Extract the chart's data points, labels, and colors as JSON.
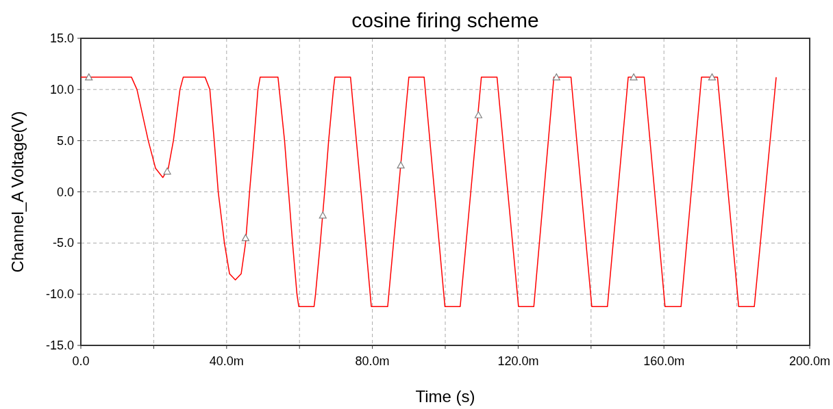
{
  "chart_data": {
    "type": "line",
    "title": "cosine firing scheme",
    "xlabel": "Time (s)",
    "ylabel": "Channel_A Voltage(V)",
    "xlim": [
      0,
      200
    ],
    "ylim": [
      -15,
      15
    ],
    "xticks": [
      {
        "value": 0,
        "label": "0.0"
      },
      {
        "value": 20,
        "label": null
      },
      {
        "value": 40,
        "label": "40.0m"
      },
      {
        "value": 60,
        "label": null
      },
      {
        "value": 80,
        "label": "80.0m"
      },
      {
        "value": 100,
        "label": null
      },
      {
        "value": 120,
        "label": "120.0m"
      },
      {
        "value": 140,
        "label": null
      },
      {
        "value": 160,
        "label": "160.0m"
      },
      {
        "value": 180,
        "label": null
      },
      {
        "value": 200,
        "label": "200.0m"
      }
    ],
    "yticks": [
      {
        "value": -15,
        "label": "-15.0"
      },
      {
        "value": -10,
        "label": "-10.0"
      },
      {
        "value": -5,
        "label": "-5.0"
      },
      {
        "value": 0,
        "label": "0.0"
      },
      {
        "value": 5,
        "label": "5.0"
      },
      {
        "value": 10,
        "label": "10.0"
      },
      {
        "value": 15,
        "label": "15.0"
      }
    ],
    "grid": true,
    "series": [
      {
        "color": "#ff0000",
        "marker": "none",
        "line_style": "solid",
        "x": [
          0,
          13.9,
          15.4,
          18.5,
          20.5,
          22.5,
          24,
          25.4,
          27.2,
          28.1,
          34.1,
          35.4,
          36.6,
          37.7,
          39.4,
          40.8,
          42.4,
          44,
          45.2,
          46.3,
          47.5,
          48.6,
          49.2,
          54.1,
          55.9,
          57,
          58.1,
          59.3,
          59.8,
          64,
          64.4,
          65.7,
          66.9,
          68,
          69.3,
          69.7,
          74,
          76.9,
          79.7,
          84.2,
          87.1,
          90,
          94.2,
          97.05,
          99.9,
          104.1,
          107,
          109.9,
          114.2,
          117.15,
          120.1,
          124.3,
          127.05,
          129.8,
          134.5,
          137.35,
          140.2,
          144.5,
          147.35,
          150.2,
          154.6,
          157.45,
          160.3,
          164.7,
          167.5,
          170.3,
          174.7,
          177.6,
          180.5,
          184.8,
          187.8,
          190.8
        ],
        "values": [
          11.2,
          11.2,
          10,
          5,
          2.3,
          1.4,
          2.3,
          5,
          10,
          11.2,
          11.2,
          10,
          5,
          0,
          -5,
          -8,
          -8.6,
          -8,
          -5,
          0,
          5,
          10,
          11.2,
          11.2,
          5,
          0,
          -5,
          -10,
          -11.2,
          -11.2,
          -10,
          -5,
          0,
          5,
          10,
          11.2,
          11.2,
          0,
          -11.2,
          -11.2,
          0,
          11.2,
          11.2,
          0,
          -11.2,
          -11.2,
          0,
          11.2,
          11.2,
          0,
          -11.2,
          -11.2,
          0,
          11.2,
          11.2,
          0,
          -11.2,
          -11.2,
          0,
          11.2,
          11.2,
          0,
          -11.2,
          -11.2,
          0,
          11.2,
          11.2,
          0,
          -11.2,
          -11.2,
          0,
          11.2
        ]
      },
      {
        "type": "scatter",
        "color": "#808080",
        "marker": "triangle",
        "x": [
          2.2,
          23.7,
          45.2,
          66.4,
          87.8,
          109.1,
          130.5,
          151.7,
          173.2
        ],
        "values": [
          11.2,
          2.0,
          -4.5,
          -2.3,
          2.6,
          7.5,
          11.2,
          11.2,
          11.2
        ]
      }
    ]
  }
}
